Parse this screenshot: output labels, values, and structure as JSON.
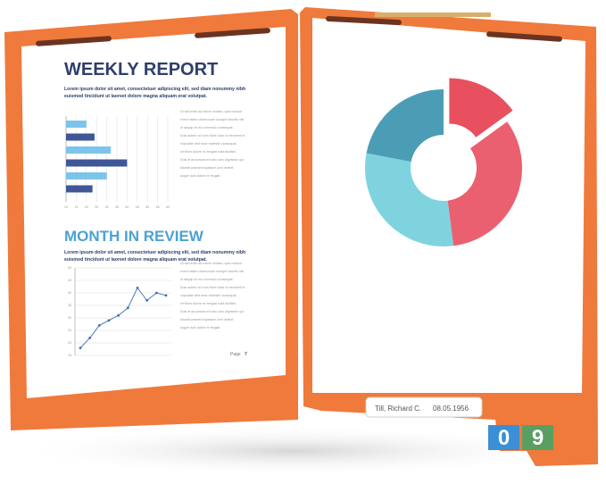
{
  "left_page": {
    "title": "WEEKLY REPORT",
    "intro": [
      "Lorem ipsum dolor sit amet, consectetuer adipiscing elit, sed diam nonummy nibh",
      "euismod tincidunt ut laoreet dolore magna aliquam erat volutpat."
    ],
    "side_text_1": [
      "Ut wisi enim ad minim veniam, quis nostrud",
      "exerci tation ullamcorper suscipit lobortis nisl",
      "ut aliquip ex ea commodo consequat.",
      "Duis autem vel eum iriure dolor in hendrerit in",
      "vulputate velit esse molestie consequat,",
      "vel illum dolore eu feugiat nulla facilisis.",
      "Duis et accumsan et iusto odio dignissim qui",
      "blandit praesent luptatum zzril delenit",
      "augue duis dolore te feugait."
    ],
    "bar_chart": {
      "type": "bar",
      "values": [
        20,
        24,
        32,
        40,
        30,
        23
      ],
      "colors": [
        "#7cc4ea",
        "#3f5797",
        "#7cc4ea",
        "#3f5797",
        "#7cc4ea",
        "#3f5797"
      ],
      "xlim": [
        10,
        60
      ],
      "xticks": [
        10,
        15,
        20,
        25,
        30,
        35,
        40,
        45,
        50,
        55,
        60
      ],
      "grid": true
    },
    "title_2": "MONTH IN REVIEW",
    "intro_2": [
      "Lorem ipsum dolor sit amet, consectetuer adipiscing elit, sed diam nonummy nibh",
      "euismod tincidunt ut laoreet dolore magna aliquam erat volutpat."
    ],
    "side_text_2": [
      "Ut wisi enim ad minim veniam, quis nostrud",
      "exerci tation ullamcorper suscipit lobortis nisl",
      "ut aliquip ex ea commodo consequat.",
      "Duis autem vel eum iriure dolor in hendrerit in",
      "vulputate velit esse molestie consequat,",
      "vel illum dolore eu feugiat nulla facilisis.",
      "Duis et accumsan et iusto odio dignissim qui",
      "blandit praesent luptatum zzril delenit",
      "augue duis dolore te feugait."
    ],
    "line_chart": {
      "type": "line",
      "values": [
        18,
        22,
        27,
        29,
        31,
        34,
        42,
        37,
        40,
        39
      ],
      "color": "#3f6fb0",
      "ylim": [
        15,
        50
      ],
      "yticks": [
        15,
        20,
        25,
        30,
        35,
        40,
        45,
        50
      ],
      "grid": true
    },
    "page_label": "Page",
    "page_number": "7"
  },
  "right_page": {
    "donut_chart": {
      "type": "pie",
      "values": [
        15,
        33,
        30,
        22
      ],
      "colors": [
        "#e8505f",
        "#ea6070",
        "#7fd3df",
        "#4b9db6"
      ],
      "exploded": 0
    },
    "label_name": "Till, Richard C.",
    "label_date": "08.05.1956",
    "tabs": [
      {
        "text": "0",
        "color": "#3a8fd6"
      },
      {
        "text": "9",
        "color": "#5a9e62"
      }
    ]
  }
}
